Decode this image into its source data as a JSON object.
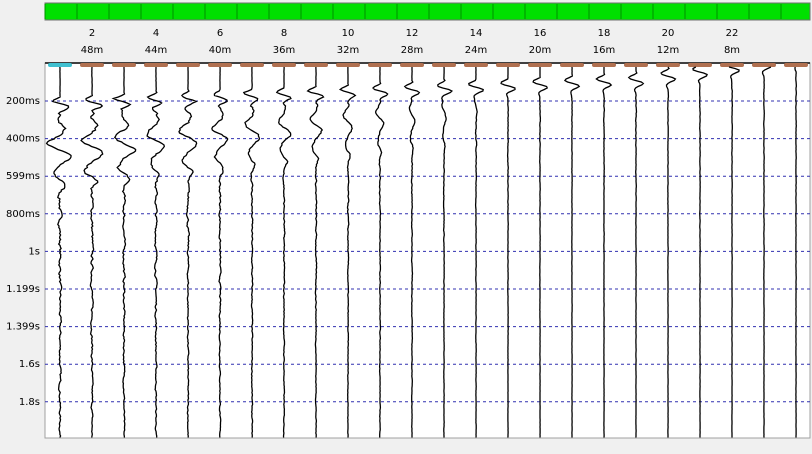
{
  "header": {
    "channels": [
      "2",
      "4",
      "6",
      "8",
      "10",
      "12",
      "14",
      "16",
      "18",
      "20",
      "22"
    ],
    "offsets": [
      "48m",
      "44m",
      "40m",
      "36m",
      "32m",
      "28m",
      "24m",
      "20m",
      "16m",
      "12m",
      "8m"
    ]
  },
  "time_axis": {
    "labels": [
      "200ms",
      "400ms",
      "599ms",
      "800ms",
      "1s",
      "1.199s",
      "1.399s",
      "1.6s",
      "1.8s"
    ]
  }
}
